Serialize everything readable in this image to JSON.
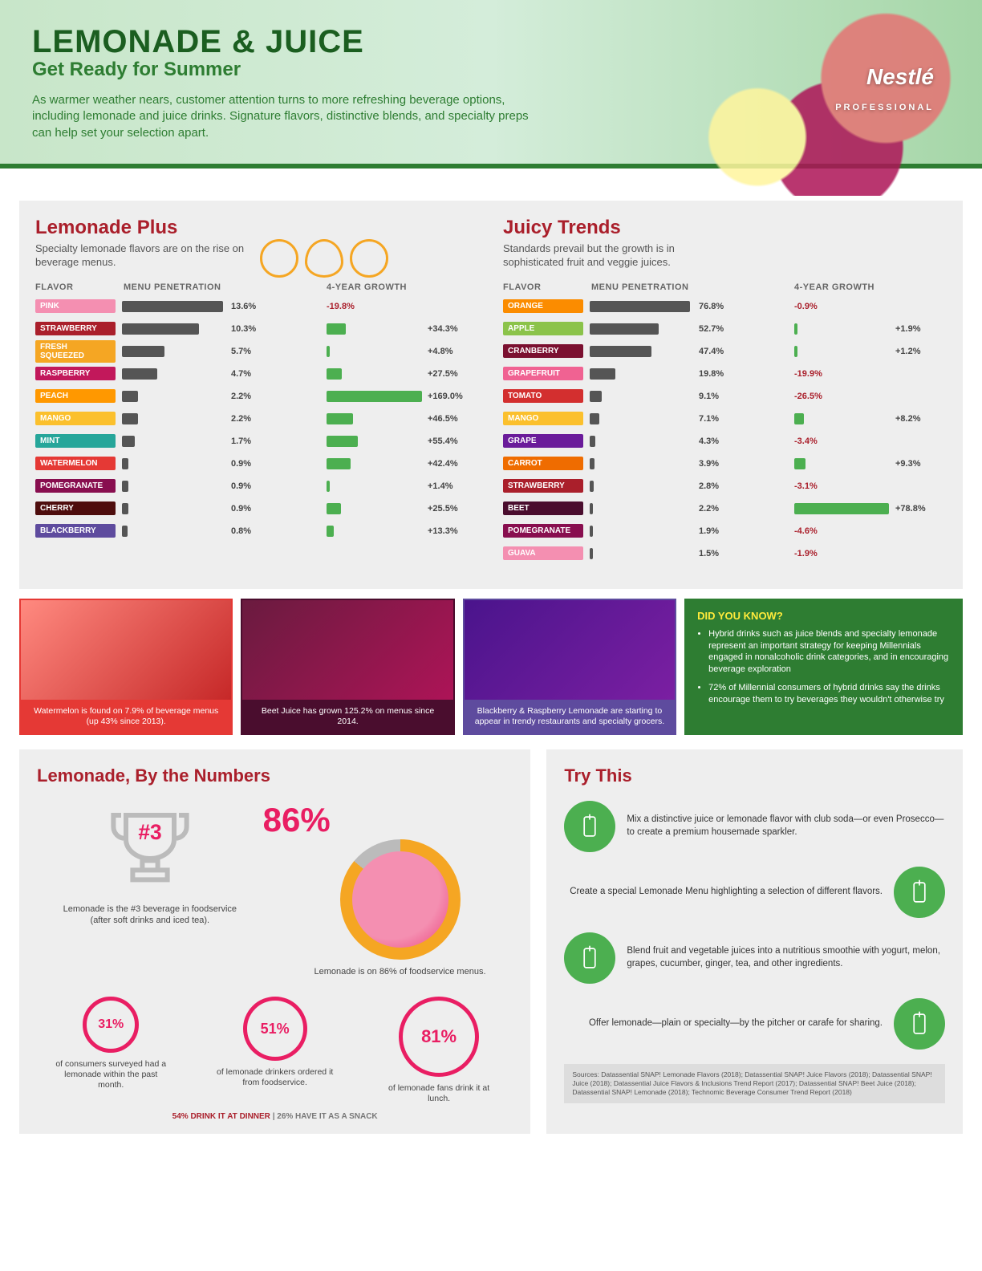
{
  "header": {
    "title": "LEMONADE & JUICE",
    "subtitle": "Get Ready for Summer",
    "body": "As warmer weather nears, customer attention turns to more refreshing beverage options, including lemonade and juice drinks. Signature flavors, distinctive blends, and specialty preps can help set your selection apart.",
    "brand": "Nestlé",
    "brand_sub": "PROFESSIONAL"
  },
  "colors": {
    "accent_red": "#aa1f2b",
    "accent_green": "#2e7d32",
    "bar_gray": "#555555",
    "growth_green": "#4caf50",
    "pink": "#e91e63",
    "orange": "#f5a623"
  },
  "lemonade": {
    "title": "Lemonade Plus",
    "subtitle": "Specialty lemonade flavors are on the rise on beverage menus.",
    "headers": {
      "flavor": "FLAVOR",
      "pen": "MENU PENETRATION",
      "grow": "4-YEAR GROWTH"
    },
    "pen_max": 14,
    "grow_max": 170,
    "rows": [
      {
        "flavor": "PINK",
        "chip": "#f48fb1",
        "pen": 13.6,
        "grow": -19.8
      },
      {
        "flavor": "STRAWBERRY",
        "chip": "#aa1f2b",
        "pen": 10.3,
        "grow": 34.3
      },
      {
        "flavor": "FRESH SQUEEZED",
        "chip": "#f5a623",
        "pen": 5.7,
        "grow": 4.8
      },
      {
        "flavor": "RASPBERRY",
        "chip": "#c2185b",
        "pen": 4.7,
        "grow": 27.5
      },
      {
        "flavor": "PEACH",
        "chip": "#ff9800",
        "pen": 2.2,
        "grow": 169.0
      },
      {
        "flavor": "MANGO",
        "chip": "#fbc02d",
        "pen": 2.2,
        "grow": 46.5
      },
      {
        "flavor": "MINT",
        "chip": "#26a69a",
        "pen": 1.7,
        "grow": 55.4
      },
      {
        "flavor": "WATERMELON",
        "chip": "#e53935",
        "pen": 0.9,
        "grow": 42.4
      },
      {
        "flavor": "POMEGRANATE",
        "chip": "#880e4f",
        "pen": 0.9,
        "grow": 1.4
      },
      {
        "flavor": "CHERRY",
        "chip": "#4e0d0d",
        "pen": 0.9,
        "grow": 25.5
      },
      {
        "flavor": "BLACKBERRY",
        "chip": "#5e4b9e",
        "pen": 0.8,
        "grow": 13.3
      }
    ]
  },
  "juice": {
    "title": "Juicy Trends",
    "subtitle": "Standards prevail but the growth is in sophisticated fruit and veggie juices.",
    "headers": {
      "flavor": "FLAVOR",
      "pen": "MENU PENETRATION",
      "grow": "4-YEAR GROWTH"
    },
    "pen_max": 80,
    "grow_max": 80,
    "rows": [
      {
        "flavor": "ORANGE",
        "chip": "#fb8c00",
        "pen": 76.8,
        "grow": -0.9
      },
      {
        "flavor": "APPLE",
        "chip": "#8bc34a",
        "pen": 52.7,
        "grow": 1.9
      },
      {
        "flavor": "CRANBERRY",
        "chip": "#7b1030",
        "pen": 47.4,
        "grow": 1.2
      },
      {
        "flavor": "GRAPEFRUIT",
        "chip": "#f06292",
        "pen": 19.8,
        "grow": -19.9
      },
      {
        "flavor": "TOMATO",
        "chip": "#d32f2f",
        "pen": 9.1,
        "grow": -26.5
      },
      {
        "flavor": "MANGO",
        "chip": "#fbc02d",
        "pen": 7.1,
        "grow": 8.2
      },
      {
        "flavor": "GRAPE",
        "chip": "#6a1b9a",
        "pen": 4.3,
        "grow": -3.4
      },
      {
        "flavor": "CARROT",
        "chip": "#ef6c00",
        "pen": 3.9,
        "grow": 9.3
      },
      {
        "flavor": "STRAWBERRY",
        "chip": "#aa1f2b",
        "pen": 2.8,
        "grow": -3.1
      },
      {
        "flavor": "BEET",
        "chip": "#4a0d2e",
        "pen": 2.2,
        "grow": 78.8
      },
      {
        "flavor": "POMEGRANATE",
        "chip": "#880e4f",
        "pen": 1.9,
        "grow": -4.6
      },
      {
        "flavor": "GUAVA",
        "chip": "#f48fb1",
        "pen": 1.5,
        "grow": -1.9
      }
    ]
  },
  "photo_cards": [
    {
      "border": "#e53935",
      "bg": "linear-gradient(135deg,#ff8a80,#c62828)",
      "cap_bg": "#e53935",
      "caption": "Watermelon is found on 7.9% of beverage menus (up 43% since 2013)."
    },
    {
      "border": "#4a0d2e",
      "bg": "linear-gradient(135deg,#6a1b3f,#ad1457)",
      "cap_bg": "#4a0d2e",
      "caption": "Beet Juice has grown 125.2% on menus since 2014."
    },
    {
      "border": "#5e4b9e",
      "bg": "linear-gradient(135deg,#4a148c,#7b1fa2)",
      "cap_bg": "#5e4b9e",
      "caption": "Blackberry & Raspberry Lemonade are starting to appear in trendy restaurants and specialty grocers."
    }
  ],
  "dyk": {
    "title": "DID YOU KNOW?",
    "bullets": [
      "Hybrid drinks such as juice blends and specialty lemonade represent an important strategy for keeping Millennials engaged in nonalcoholic drink categories, and in encouraging beverage exploration",
      "72% of Millennial consumers of hybrid drinks say the drinks encourage them to try beverages they wouldn't otherwise try"
    ]
  },
  "numbers": {
    "title": "Lemonade, By the Numbers",
    "trophy_label": "#3",
    "trophy_caption": "Lemonade is the #3 beverage in foodservice (after soft drinks and iced tea).",
    "donut_percent": "86%",
    "donut_caption": "Lemonade is on 86% of foodservice menus.",
    "rings": [
      {
        "value": "31%",
        "size": "sm",
        "caption": "of consumers surveyed had a lemonade within the past month."
      },
      {
        "value": "51%",
        "size": "md",
        "caption": "of lemonade drinkers ordered it from foodservice."
      },
      {
        "value": "81%",
        "size": "lg",
        "caption": "of lemonade fans drink it at lunch."
      }
    ],
    "footer": "54% DRINK IT AT DINNER | 26% HAVE IT AS A SNACK",
    "footer_parts": {
      "a": "54% DRINK IT AT DINNER",
      "b": "26% HAVE IT AS A SNACK"
    }
  },
  "trythis": {
    "title": "Try This",
    "tips": [
      {
        "icon": "flute-icon",
        "text": "Mix a distinctive juice or lemonade flavor with club soda—or even Prosecco—to create a premium housemade sparkler."
      },
      {
        "icon": "menu-icon",
        "text": "Create a special Lemonade Menu highlighting a selection of different flavors."
      },
      {
        "icon": "blender-icon",
        "text": "Blend fruit and vegetable juices into a nutritious smoothie with yogurt, melon, grapes, cucumber, ginger, tea, and other ingredients."
      },
      {
        "icon": "pitcher-icon",
        "text": "Offer lemonade—plain or specialty—by the pitcher or carafe for sharing."
      }
    ]
  },
  "sources": "Sources: Datassential SNAP! Lemonade Flavors (2018); Datassential SNAP! Juice Flavors (2018); Datassential SNAP! Juice (2018); Datassential Juice Flavors & Inclusions Trend Report (2017); Datassential SNAP! Beet Juice (2018); Datassential SNAP! Lemonade (2018); Technomic Beverage Consumer Trend Report (2018)"
}
